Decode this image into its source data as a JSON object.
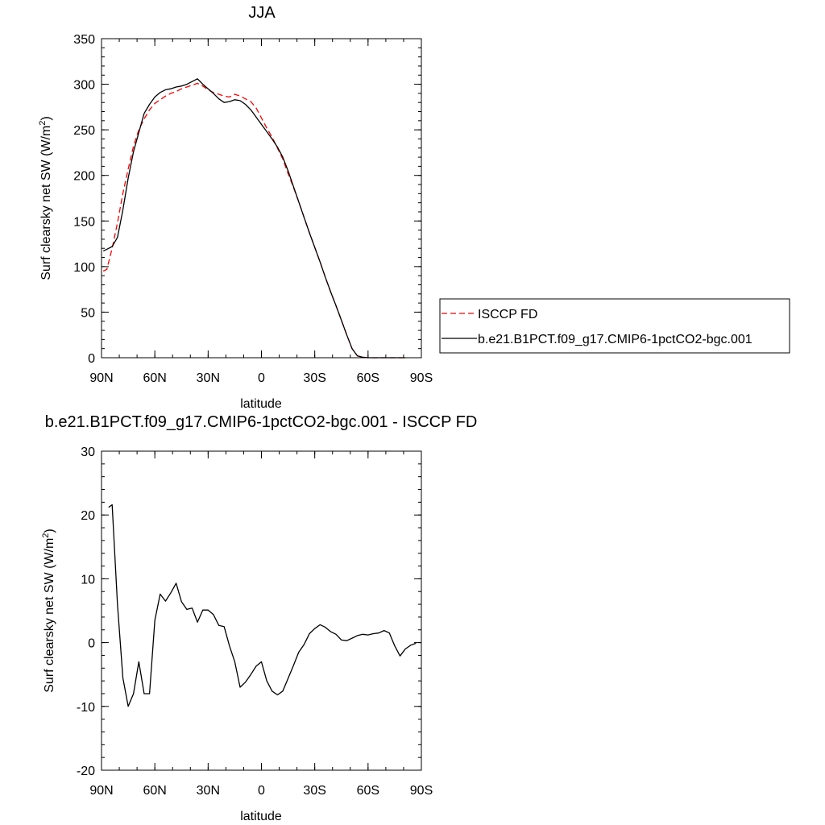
{
  "chart_data": [
    {
      "type": "line",
      "title": "JJA",
      "xlabel": "latitude",
      "ylabel": "Surf clearsky net SW (W/m",
      "ylabel_sup": "2",
      "ylabel_end": ")",
      "xlim": [
        90,
        -90
      ],
      "ylim": [
        0,
        350
      ],
      "x_ticks": [
        90,
        60,
        30,
        0,
        -30,
        -60,
        -90
      ],
      "x_tick_labels": [
        "90N",
        "60N",
        "30N",
        "0",
        "30S",
        "60S",
        "90S"
      ],
      "y_ticks": [
        0,
        50,
        100,
        150,
        200,
        250,
        300,
        350
      ],
      "y_tick_labels": [
        "0",
        "50",
        "100",
        "150",
        "200",
        "250",
        "300",
        "350"
      ],
      "legend_position": "right",
      "series": [
        {
          "name": "ISCCP FD",
          "style": "dashed",
          "color": "#ff0000",
          "x": [
            89,
            87,
            84,
            81,
            78,
            75,
            72,
            69,
            66,
            63,
            60,
            57,
            54,
            51,
            48,
            45,
            42,
            39,
            36,
            33,
            30,
            27,
            24,
            21,
            18,
            15,
            12,
            9,
            6,
            3,
            0,
            -3,
            -6,
            -9,
            -12,
            -15,
            -18,
            -21,
            -24,
            -27,
            -30,
            -33,
            -36,
            -39,
            -42,
            -45,
            -48,
            -51,
            -54,
            -57,
            -60,
            -63,
            -66,
            -69,
            -72,
            -75,
            -78,
            -81
          ],
          "y": [
            95,
            97,
            120,
            148,
            180,
            207,
            232,
            250,
            262,
            272,
            279,
            283,
            287,
            290,
            292,
            295,
            297,
            299,
            301,
            298,
            294,
            291,
            289,
            287,
            286,
            289,
            287,
            284,
            281,
            274,
            263,
            252,
            242,
            230,
            218,
            202,
            187,
            171,
            154,
            137,
            121,
            105,
            88,
            72,
            57,
            41,
            25,
            10,
            2,
            0.5,
            0,
            0,
            0,
            0,
            0,
            0,
            0,
            0
          ]
        },
        {
          "name": "b.e21.B1PCT.f09_g17.CMIP6-1pctCO2-bgc.001",
          "style": "solid",
          "color": "#000000",
          "x": [
            89,
            87,
            84,
            81,
            78,
            75,
            72,
            69,
            66,
            63,
            60,
            57,
            54,
            51,
            48,
            45,
            42,
            39,
            36,
            33,
            30,
            27,
            24,
            21,
            18,
            15,
            12,
            9,
            6,
            3,
            0,
            -3,
            -6,
            -9,
            -12,
            -15,
            -18,
            -21,
            -24,
            -27,
            -30,
            -33,
            -36,
            -39,
            -42,
            -45,
            -48,
            -51,
            -54,
            -57,
            -60,
            -63,
            -66,
            -69,
            -72,
            -75,
            -78,
            -81
          ],
          "y": [
            117,
            119,
            122,
            132,
            162,
            197,
            226,
            247,
            268,
            278,
            286,
            291,
            294,
            295,
            297,
            298,
            300,
            303,
            306,
            300,
            295,
            290,
            284,
            280,
            281,
            283,
            282,
            278,
            272,
            264,
            256,
            248,
            240,
            231,
            220,
            205,
            188,
            171,
            154,
            137,
            121,
            105,
            88,
            72,
            57,
            41,
            25,
            10,
            2,
            0.5,
            0,
            0,
            0,
            0,
            0,
            0,
            0,
            0
          ]
        }
      ]
    },
    {
      "type": "line",
      "title": "b.e21.B1PCT.f09_g17.CMIP6-1pctCO2-bgc.001 - ISCCP FD",
      "xlabel": "latitude",
      "ylabel": "Surf clearsky net SW (W/m",
      "ylabel_sup": "2",
      "ylabel_end": ")",
      "xlim": [
        90,
        -90
      ],
      "ylim": [
        -20,
        30
      ],
      "x_ticks": [
        90,
        60,
        30,
        0,
        -30,
        -60,
        -90
      ],
      "x_tick_labels": [
        "90N",
        "60N",
        "30N",
        "0",
        "30S",
        "60S",
        "90S"
      ],
      "y_ticks": [
        -20,
        -10,
        0,
        10,
        20,
        30
      ],
      "y_tick_labels": [
        "-20",
        "-10",
        "0",
        "10",
        "20",
        "30"
      ],
      "series": [
        {
          "style": "solid",
          "color": "#000000",
          "x": [
            86,
            84,
            81,
            78,
            75,
            72,
            69,
            66,
            63,
            60,
            57,
            54,
            51,
            48,
            45,
            42,
            39,
            36,
            33,
            30,
            27,
            24,
            21,
            18,
            15,
            12,
            9,
            6,
            3,
            0,
            -3,
            -6,
            -9,
            -12,
            -15,
            -18,
            -21,
            -24,
            -27,
            -30,
            -33,
            -36,
            -39,
            -42,
            -45,
            -48,
            -51,
            -54,
            -57,
            -60,
            -63,
            -66,
            -69,
            -72,
            -75,
            -78,
            -81,
            -84,
            -87
          ],
          "y": [
            21.2,
            21.6,
            6,
            -5.5,
            -10,
            -8,
            -3,
            -8,
            -8,
            3.5,
            7.6,
            6.5,
            7.8,
            9.3,
            6.4,
            5.2,
            5.4,
            3.2,
            5.1,
            5.1,
            4.4,
            2.7,
            2.5,
            -0.5,
            -3,
            -7,
            -6.2,
            -5,
            -3.7,
            -3,
            -6,
            -7.6,
            -8.2,
            -7.6,
            -5.6,
            -3.6,
            -1.5,
            -0.3,
            1.4,
            2.2,
            2.8,
            2.4,
            1.7,
            1.3,
            0.4,
            0.3,
            0.7,
            1.1,
            1.3,
            1.2,
            1.4,
            1.5,
            1.9,
            1.5,
            -0.5,
            -2.1,
            -1,
            -0.4,
            -0.1
          ]
        }
      ]
    }
  ]
}
